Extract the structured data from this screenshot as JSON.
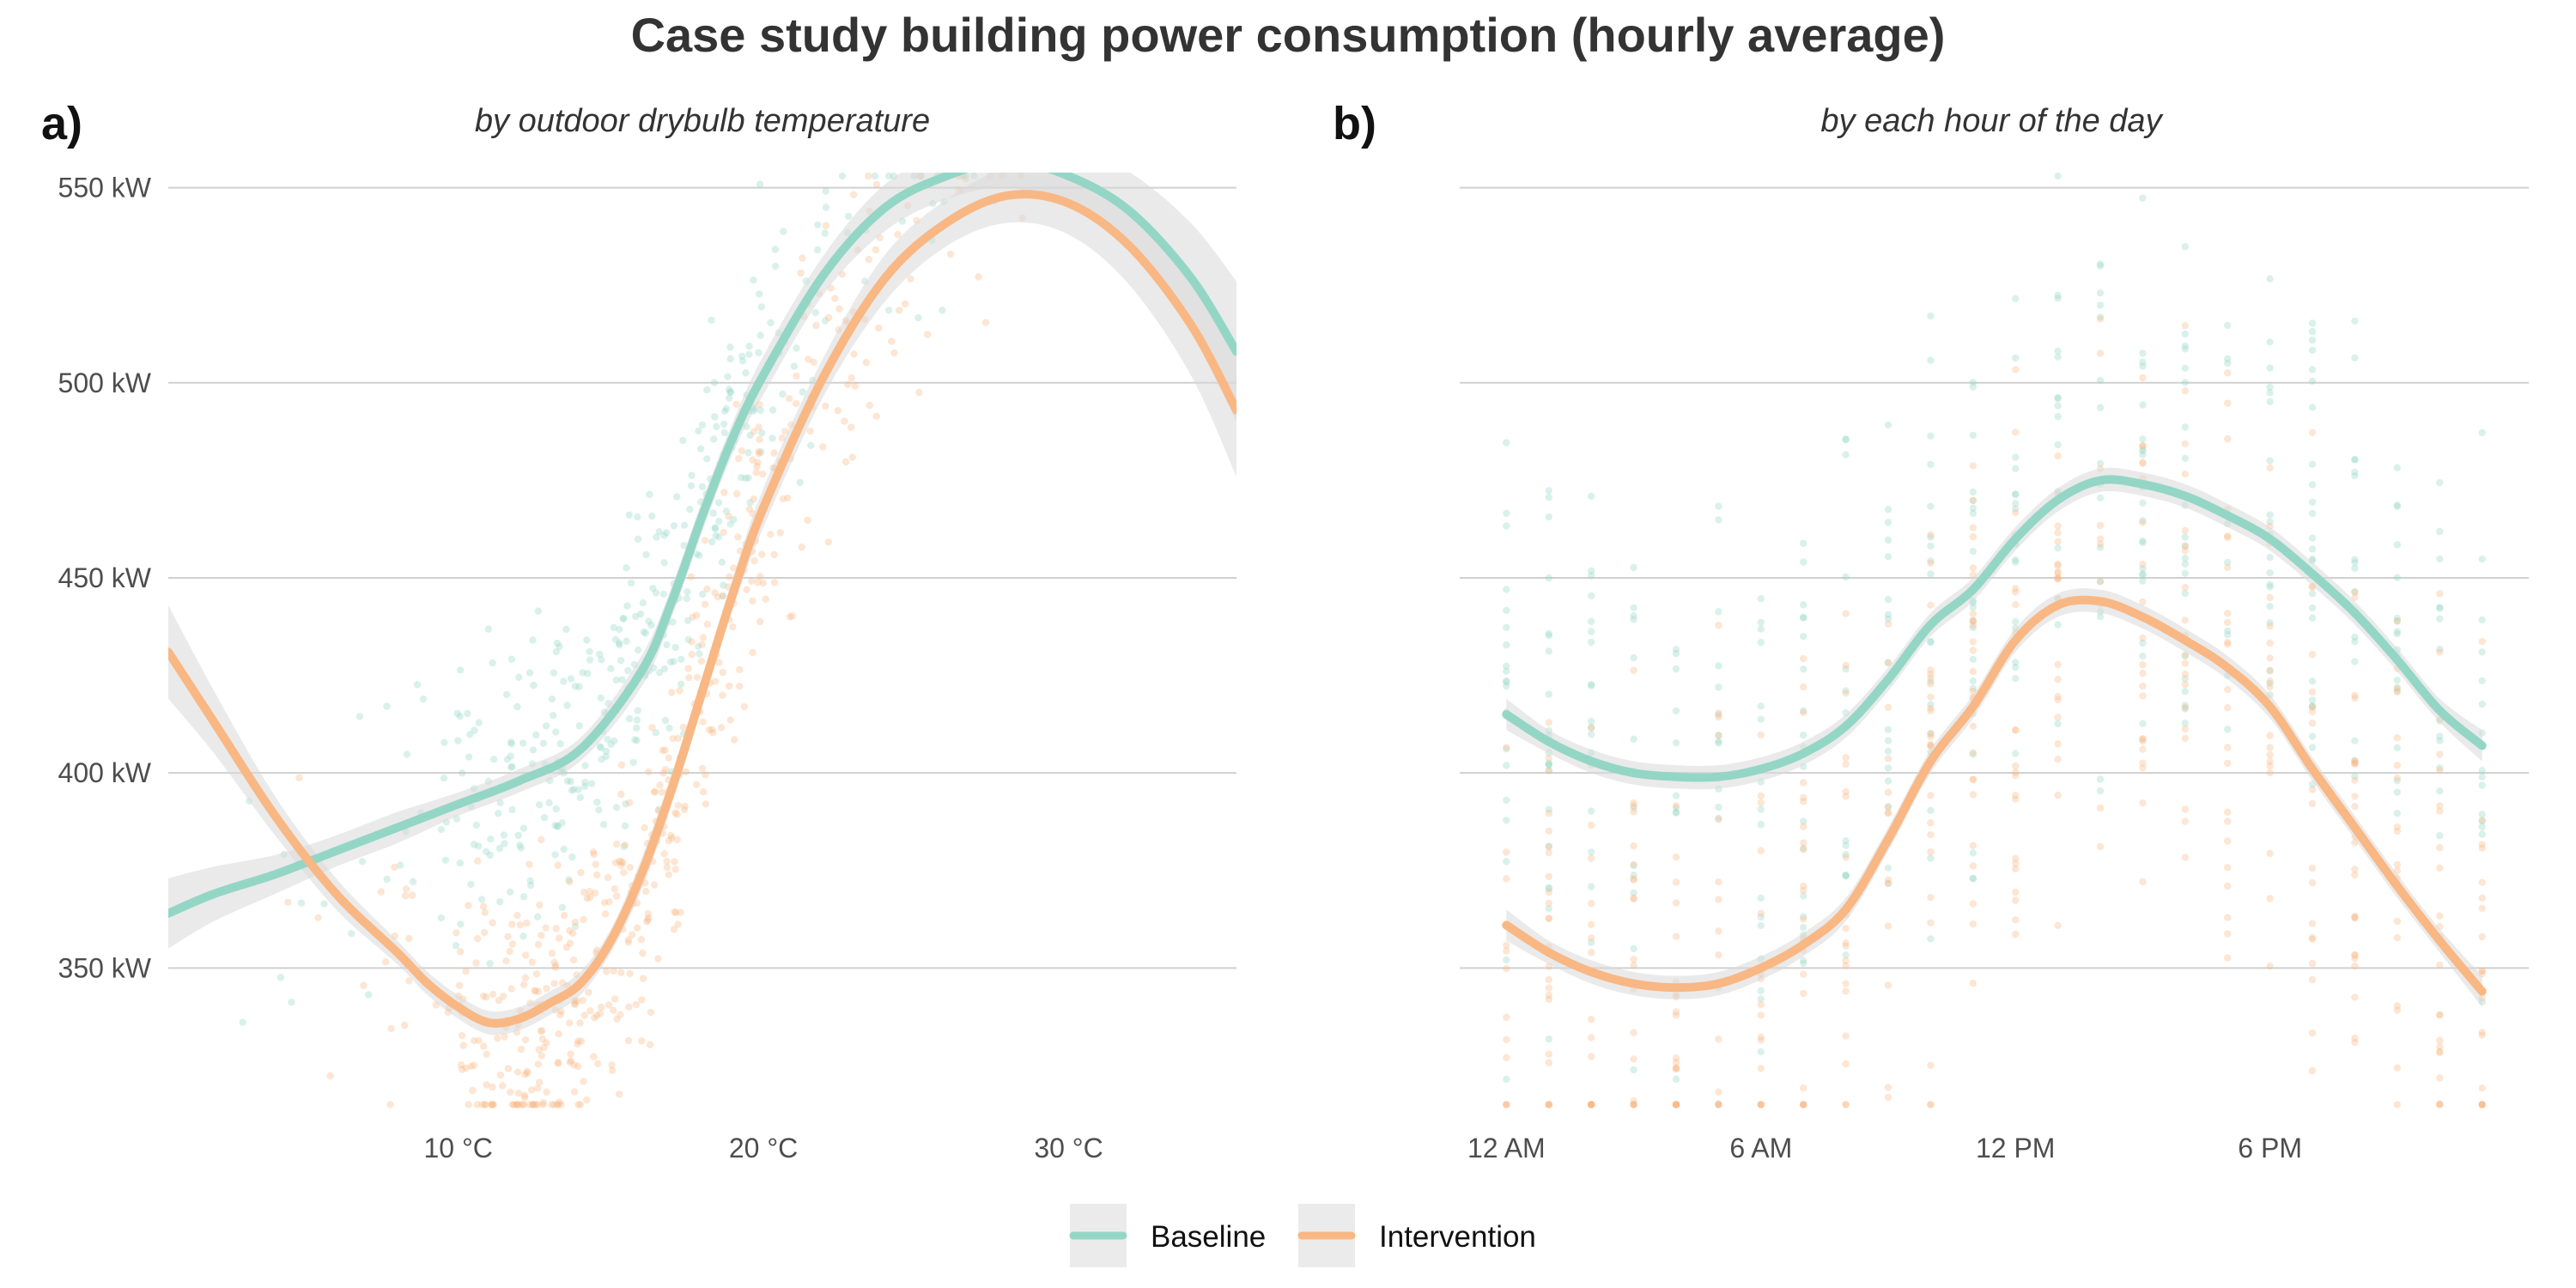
{
  "figure": {
    "title": "Case study building power consumption (hourly average)"
  },
  "colors": {
    "baseline": "#94d6c5",
    "intervention": "#f9b784",
    "ribbon": "#d9d9d9",
    "grid": "#d0d0d0"
  },
  "chart_data": [
    {
      "type": "scatter",
      "panel_tag": "a)",
      "subtitle": "by outdoor drybulb temperature",
      "xlabel": "",
      "ylabel": "",
      "xlim": [
        0.5,
        35.5
      ],
      "ylim": [
        312,
        553
      ],
      "x_ticks": [
        10,
        20,
        30
      ],
      "x_tick_labels": [
        "10 °C",
        "20 °C",
        "30 °C"
      ],
      "y_ticks": [
        350,
        400,
        450,
        500,
        550
      ],
      "y_tick_labels": [
        "350 kW",
        "400 kW",
        "450 kW",
        "500 kW",
        "550 kW"
      ],
      "grid": "horizontal",
      "series": [
        {
          "name": "Baseline",
          "smooth_x": [
            0.5,
            2,
            4,
            6,
            8,
            10,
            12,
            14,
            16,
            17,
            18,
            19,
            20,
            22,
            24,
            26,
            28,
            30,
            32,
            34,
            35.5
          ],
          "smooth_y": [
            364,
            369,
            374,
            380,
            386,
            392,
            398,
            406,
            426,
            444,
            466,
            486,
            502,
            528,
            545,
            553,
            557,
            553,
            544,
            527,
            508
          ],
          "ribbon_halfwidth": [
            9,
            7,
            5,
            4,
            4,
            3,
            3,
            3,
            4,
            4,
            4,
            4,
            5,
            5,
            6,
            6,
            7,
            8,
            10,
            14,
            18
          ],
          "points": {
            "count": 380,
            "x_range": [
              2,
              30
            ],
            "y_range": [
              315,
              553
            ]
          }
        },
        {
          "name": "Intervention",
          "smooth_x": [
            0.5,
            2,
            4,
            6,
            8,
            9,
            10,
            11,
            12,
            13,
            14,
            15,
            16,
            17,
            18,
            19,
            20,
            22,
            24,
            26,
            28,
            30,
            32,
            34,
            35.5
          ],
          "smooth_y": [
            431,
            413,
            389,
            369,
            354,
            346,
            340,
            336,
            337,
            341,
            346,
            357,
            374,
            396,
            421,
            446,
            468,
            502,
            527,
            541,
            548,
            546,
            535,
            515,
            493
          ],
          "ribbon_halfwidth": [
            12,
            8,
            5,
            4,
            3,
            3,
            3,
            3,
            3,
            3,
            3,
            3,
            4,
            4,
            4,
            4,
            5,
            5,
            6,
            6,
            7,
            8,
            10,
            13,
            17
          ],
          "points": {
            "count": 520,
            "x_range": [
              2,
              32
            ],
            "y_range": [
              315,
              553
            ]
          }
        }
      ]
    },
    {
      "type": "scatter",
      "panel_tag": "b)",
      "subtitle": "by each hour of the day",
      "xlabel": "",
      "ylabel": "",
      "xlim": [
        -1.1,
        24.1
      ],
      "ylim": [
        312,
        553
      ],
      "x_ticks": [
        0,
        6,
        12,
        18
      ],
      "x_tick_labels": [
        "12 AM",
        "6 AM",
        "12 PM",
        "6 PM"
      ],
      "y_ticks": [
        350,
        400,
        450,
        500,
        550
      ],
      "grid": "horizontal",
      "series": [
        {
          "name": "Baseline",
          "smooth_x": [
            0,
            1,
            2,
            3,
            4,
            5,
            6,
            7,
            8,
            9,
            10,
            11,
            12,
            13,
            14,
            15,
            16,
            17,
            18,
            19,
            20,
            21,
            22,
            23
          ],
          "smooth_y": [
            415,
            408,
            403,
            400,
            399,
            399,
            401,
            405,
            412,
            424,
            438,
            447,
            460,
            470,
            475,
            474,
            471,
            466,
            460,
            451,
            441,
            429,
            416,
            407
          ],
          "ribbon_halfwidth": [
            4,
            3,
            3,
            3,
            3,
            3,
            3,
            3,
            3,
            3,
            3,
            3,
            3,
            3,
            3,
            3,
            3,
            3,
            3,
            3,
            3,
            3,
            3,
            4
          ],
          "points": {
            "count": 420,
            "x_range": [
              0,
              23
            ],
            "y_range": [
              315,
              553
            ]
          }
        },
        {
          "name": "Intervention",
          "smooth_x": [
            0,
            1,
            2,
            3,
            4,
            5,
            6,
            7,
            8,
            9,
            10,
            11,
            12,
            13,
            14,
            15,
            16,
            17,
            18,
            19,
            20,
            21,
            22,
            23
          ],
          "smooth_y": [
            361,
            354,
            349,
            346,
            345,
            346,
            350,
            356,
            365,
            383,
            403,
            417,
            434,
            443,
            444,
            440,
            434,
            427,
            417,
            401,
            386,
            371,
            357,
            344
          ],
          "ribbon_halfwidth": [
            4,
            3,
            3,
            3,
            3,
            3,
            3,
            3,
            3,
            3,
            3,
            3,
            3,
            3,
            3,
            3,
            3,
            3,
            3,
            3,
            3,
            3,
            3,
            4
          ],
          "points": {
            "count": 480,
            "x_range": [
              0,
              23
            ],
            "y_range": [
              315,
              553
            ]
          }
        }
      ]
    }
  ],
  "legend": {
    "position": "bottom",
    "items": [
      {
        "label": "Baseline",
        "series": "baseline"
      },
      {
        "label": "Intervention",
        "series": "intervention"
      }
    ]
  }
}
